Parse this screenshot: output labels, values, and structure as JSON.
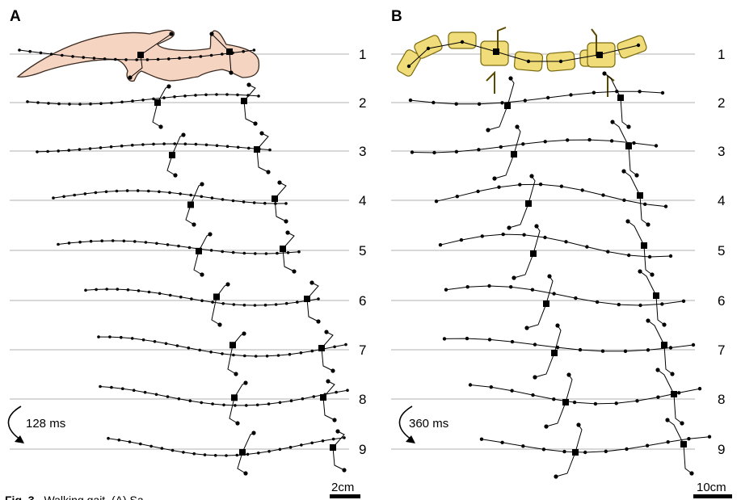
{
  "panels": [
    {
      "label": "A",
      "frames": [
        "1",
        "2",
        "3",
        "4",
        "5",
        "6",
        "7",
        "8",
        "9"
      ],
      "cycle_time": "128 ms",
      "scale_bar": "2cm",
      "body_color": "#f5d4c2",
      "limb_style": "outline"
    },
    {
      "label": "B",
      "frames": [
        "1",
        "2",
        "3",
        "4",
        "5",
        "6",
        "7",
        "8",
        "9"
      ],
      "cycle_time": "360 ms",
      "scale_bar": "10cm",
      "body_color": "#f1dc7a",
      "limb_style": "segments"
    }
  ],
  "caption": {
    "fig": "Fig. 3",
    "text": "Walking gait. (A) Sa"
  },
  "colors": {
    "line": "#000000",
    "grid": "#b0b0b0",
    "salamander": "#f5d4c2",
    "robot": "#f1dc7a",
    "robot_stroke": "#7a6a10"
  }
}
